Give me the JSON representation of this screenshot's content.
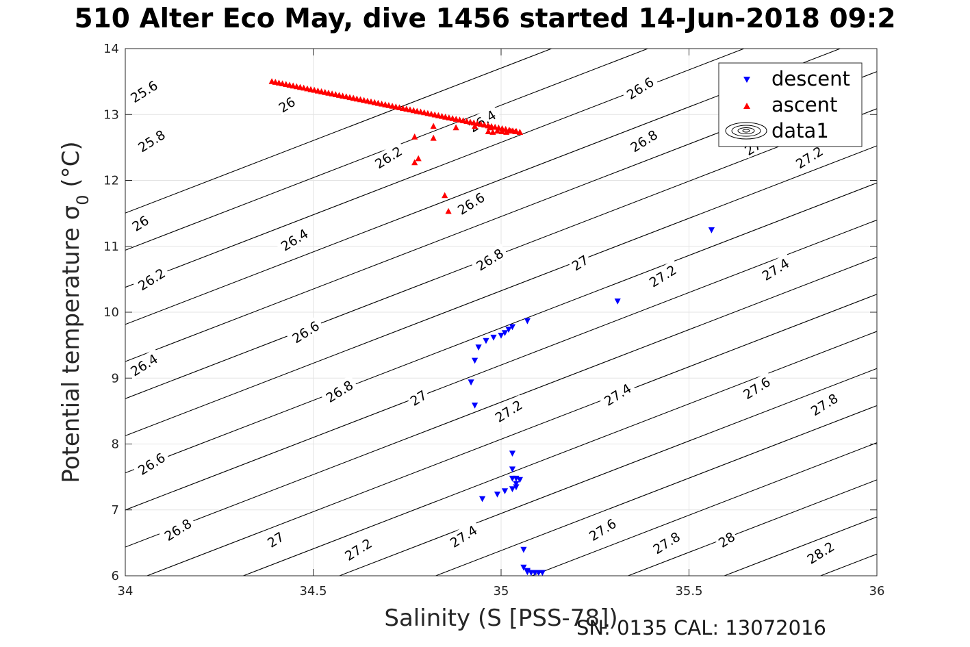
{
  "chart_data": {
    "type": "scatter",
    "title": "510 Alter Eco May, dive 1456 started 14-Jun-2018 09:2",
    "xlabel": "Salinity (S [PSS-78])",
    "ylabel_main": "Potential temperature σ",
    "ylabel_sub": "0",
    "ylabel_unit": " (°C)",
    "xlim": [
      34,
      36
    ],
    "ylim": [
      6,
      14
    ],
    "x_ticks": [
      34,
      34.5,
      35,
      35.5,
      36
    ],
    "x_tick_labels": [
      "34",
      "34.5",
      "35",
      "35.5",
      "36"
    ],
    "y_ticks": [
      6,
      7,
      8,
      9,
      10,
      11,
      12,
      13,
      14
    ],
    "y_tick_labels": [
      "6",
      "7",
      "8",
      "9",
      "10",
      "11",
      "12",
      "13",
      "14"
    ],
    "grid": true,
    "legend_position": "top-right",
    "legend": [
      "descent",
      "ascent",
      "data1"
    ],
    "density_contours": {
      "levels": [
        25.6,
        25.8,
        26,
        26.2,
        26.4,
        26.6,
        26.8,
        27,
        27.2,
        27.4,
        27.6,
        27.8,
        28,
        28.2
      ],
      "labels": [
        {
          "text": "25.6",
          "s": 34.05,
          "t": 13.35
        },
        {
          "text": "25.8",
          "s": 34.07,
          "t": 12.6
        },
        {
          "text": "26",
          "s": 34.43,
          "t": 13.15
        },
        {
          "text": "26",
          "s": 34.04,
          "t": 11.35
        },
        {
          "text": "26.2",
          "s": 34.7,
          "t": 12.35
        },
        {
          "text": "26.2",
          "s": 34.07,
          "t": 10.5
        },
        {
          "text": "26.4",
          "s": 34.95,
          "t": 12.9
        },
        {
          "text": "26.4",
          "s": 34.45,
          "t": 11.1
        },
        {
          "text": "26.4",
          "s": 34.05,
          "t": 9.2
        },
        {
          "text": "26.6",
          "s": 35.37,
          "t": 13.4
        },
        {
          "text": "26.6",
          "s": 34.92,
          "t": 11.65
        },
        {
          "text": "26.6",
          "s": 34.48,
          "t": 9.7
        },
        {
          "text": "26.6",
          "s": 34.07,
          "t": 7.7
        },
        {
          "text": "26.8",
          "s": 35.38,
          "t": 12.6
        },
        {
          "text": "26.8",
          "s": 34.97,
          "t": 10.8
        },
        {
          "text": "26.8",
          "s": 34.57,
          "t": 8.8
        },
        {
          "text": "26.8",
          "s": 34.14,
          "t": 6.7
        },
        {
          "text": "27",
          "s": 35.21,
          "t": 10.75
        },
        {
          "text": "27",
          "s": 34.78,
          "t": 8.7
        },
        {
          "text": "27",
          "s": 34.4,
          "t": 6.55
        },
        {
          "text": "27",
          "s": 35.67,
          "t": 12.5
        },
        {
          "text": "27.2",
          "s": 35.82,
          "t": 12.35
        },
        {
          "text": "27.2",
          "s": 35.43,
          "t": 10.55
        },
        {
          "text": "27.2",
          "s": 35.02,
          "t": 8.5
        },
        {
          "text": "27.2",
          "s": 34.62,
          "t": 6.4
        },
        {
          "text": "27.4",
          "s": 35.73,
          "t": 10.65
        },
        {
          "text": "27.4",
          "s": 35.31,
          "t": 8.75
        },
        {
          "text": "27.4",
          "s": 34.9,
          "t": 6.6
        },
        {
          "text": "27.6",
          "s": 35.68,
          "t": 8.85
        },
        {
          "text": "27.6",
          "s": 35.27,
          "t": 6.7
        },
        {
          "text": "27.8",
          "s": 35.86,
          "t": 8.6
        },
        {
          "text": "27.8",
          "s": 35.44,
          "t": 6.5
        },
        {
          "text": "28",
          "s": 35.6,
          "t": 6.55
        },
        {
          "text": "28.2",
          "s": 35.85,
          "t": 6.35
        }
      ]
    },
    "series": [
      {
        "name": "descent",
        "marker": "triangle-down",
        "color": "#0000ff",
        "points": [
          [
            35.56,
            11.25
          ],
          [
            35.31,
            10.17
          ],
          [
            35.07,
            9.87
          ],
          [
            35.03,
            9.78
          ],
          [
            35.02,
            9.74
          ],
          [
            35.01,
            9.69
          ],
          [
            35.0,
            9.65
          ],
          [
            34.98,
            9.62
          ],
          [
            34.96,
            9.57
          ],
          [
            34.94,
            9.47
          ],
          [
            34.93,
            9.27
          ],
          [
            34.92,
            8.94
          ],
          [
            34.93,
            8.59
          ],
          [
            35.03,
            7.86
          ],
          [
            35.03,
            7.62
          ],
          [
            35.03,
            7.48
          ],
          [
            35.04,
            7.48
          ],
          [
            35.05,
            7.46
          ],
          [
            35.04,
            7.4
          ],
          [
            35.04,
            7.35
          ],
          [
            35.03,
            7.32
          ],
          [
            35.01,
            7.29
          ],
          [
            34.99,
            7.24
          ],
          [
            34.95,
            7.17
          ],
          [
            35.06,
            6.4
          ],
          [
            35.06,
            6.13
          ],
          [
            35.07,
            6.08
          ],
          [
            35.07,
            6.06
          ],
          [
            35.08,
            6.05
          ],
          [
            35.09,
            6.05
          ],
          [
            35.1,
            6.05
          ],
          [
            35.11,
            6.05
          ]
        ]
      },
      {
        "name": "ascent",
        "marker": "triangle-up",
        "color": "#ff0000",
        "points": [
          [
            34.86,
            11.53
          ],
          [
            34.85,
            11.77
          ],
          [
            34.78,
            12.33
          ],
          [
            34.77,
            12.27
          ],
          [
            34.77,
            12.66
          ],
          [
            34.82,
            12.64
          ],
          [
            34.82,
            12.82
          ],
          [
            34.88,
            12.8
          ],
          [
            34.93,
            12.82
          ],
          [
            34.97,
            12.8
          ]
        ],
        "line_from": [
          34.39,
          13.5
        ],
        "line_to": [
          35.05,
          12.73
        ]
      }
    ]
  },
  "footer": "SN: 0135  CAL: 13072016"
}
